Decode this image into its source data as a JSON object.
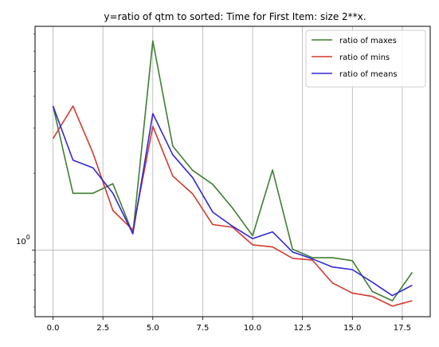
{
  "chart_data": {
    "type": "line",
    "title": "y=ratio of qtm to sorted: Time for First Item: size 2**x.",
    "xlabel": "",
    "ylabel": "",
    "yscale": "log",
    "xlim": [
      -0.9,
      18.9
    ],
    "ylim": [
      0.55,
      7.5
    ],
    "grid": true,
    "legend_position": "top-right",
    "x_ticks": [
      0,
      2.5,
      5,
      7.5,
      10,
      12.5,
      15,
      17.5
    ],
    "x_tick_labels": [
      "0.0",
      "2.5",
      "5.0",
      "7.5",
      "10.0",
      "12.5",
      "15.0",
      "17.5"
    ],
    "y_ticks": [
      1
    ],
    "y_tick_labels": [
      "10^0"
    ],
    "y_tick_base": "10",
    "y_tick_exponent": "0",
    "x": [
      0,
      1,
      2,
      3,
      4,
      5,
      6,
      7,
      8,
      9,
      10,
      11,
      12,
      13,
      14,
      15,
      16,
      17,
      18
    ],
    "series": [
      {
        "name": "ratio of maxes",
        "color": "#3f7f2f",
        "values": [
          3.66,
          1.67,
          1.67,
          1.82,
          1.16,
          6.58,
          2.55,
          2.05,
          1.81,
          1.46,
          1.14,
          2.06,
          1.01,
          0.935,
          0.935,
          0.91,
          0.69,
          0.635,
          0.82
        ]
      },
      {
        "name": "ratio of mins",
        "color": "#d33a2e",
        "values": [
          2.73,
          3.66,
          2.4,
          1.43,
          1.2,
          3.05,
          1.95,
          1.66,
          1.26,
          1.23,
          1.05,
          1.03,
          0.93,
          0.915,
          0.745,
          0.68,
          0.66,
          0.605,
          0.635
        ]
      },
      {
        "name": "ratio of means",
        "color": "#3228d6",
        "values": [
          3.66,
          2.25,
          2.1,
          1.67,
          1.16,
          3.42,
          2.36,
          1.92,
          1.41,
          1.24,
          1.11,
          1.18,
          0.985,
          0.925,
          0.86,
          0.84,
          0.75,
          0.665,
          0.73
        ]
      }
    ]
  }
}
